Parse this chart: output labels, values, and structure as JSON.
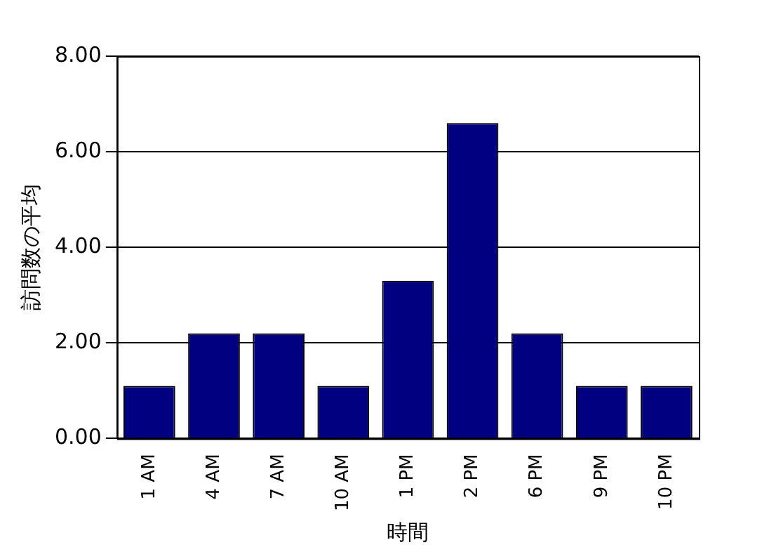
{
  "chart_data": {
    "type": "bar",
    "xlabel": "時間",
    "ylabel": "訪問数の平均",
    "categories": [
      "1 AM",
      "4 AM",
      "7 AM",
      "10 AM",
      "1 PM",
      "2 PM",
      "6 PM",
      "9 PM",
      "10 PM"
    ],
    "values": [
      1.1,
      2.2,
      2.2,
      1.1,
      3.3,
      6.6,
      2.2,
      1.1,
      1.1
    ],
    "color": "#000080",
    "ylim": [
      0,
      8
    ],
    "yticks": [
      {
        "value": 0,
        "label": "0.00"
      },
      {
        "value": 2,
        "label": "2.00"
      },
      {
        "value": 4,
        "label": "4.00"
      },
      {
        "value": 6,
        "label": "6.00"
      },
      {
        "value": 8,
        "label": "8.00"
      }
    ],
    "grid": "y",
    "legend": false
  }
}
